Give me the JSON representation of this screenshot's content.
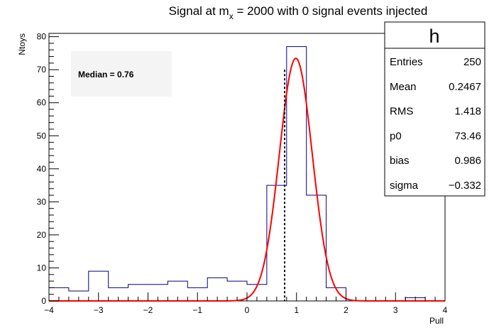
{
  "chart_data": {
    "type": "histogram",
    "title_pre": "Signal at m",
    "title_sub": "x",
    "title_post": " = 2000 with 0 signal events injected",
    "xlabel": "Pull",
    "ylabel": "Ntoys",
    "xlim": [
      -4,
      4
    ],
    "ylim": [
      0,
      81
    ],
    "xticks": [
      "−4",
      "−3",
      "−2",
      "−1",
      "0",
      "1",
      "2",
      "3",
      "4"
    ],
    "yticks": [
      "0",
      "10",
      "20",
      "30",
      "40",
      "50",
      "60",
      "70",
      "80"
    ],
    "bin_edges": [
      -4.0,
      -3.6,
      -3.2,
      -2.8,
      -2.4,
      -2.0,
      -1.6,
      -1.2,
      -0.8,
      -0.4,
      0.0,
      0.4,
      0.8,
      1.2,
      1.6,
      2.0,
      2.4,
      2.8,
      3.2,
      3.6,
      4.0
    ],
    "counts": [
      4,
      3,
      9,
      4,
      5,
      5,
      6,
      4,
      7,
      6,
      5,
      35,
      77,
      32,
      4,
      0,
      0,
      0,
      1,
      0
    ],
    "hist_color": "#000080",
    "fit": {
      "type": "gaussian",
      "p0": 73.46,
      "mean": 0.986,
      "sigma": 0.332,
      "color": "#ff0000"
    },
    "median_line": {
      "x": 0.76,
      "y_top": 70,
      "style": "dashed"
    },
    "median_label": "Median = 0.76",
    "stats_box": {
      "title": "h",
      "rows": [
        {
          "label": "Entries",
          "value": "250"
        },
        {
          "label": "Mean",
          "value": "0.2467"
        },
        {
          "label": "RMS",
          "value": "1.418"
        },
        {
          "label": "p0",
          "value": "73.46"
        },
        {
          "label": "bias",
          "value": "0.986"
        },
        {
          "label": "sigma",
          "value": "−0.332"
        }
      ]
    }
  }
}
